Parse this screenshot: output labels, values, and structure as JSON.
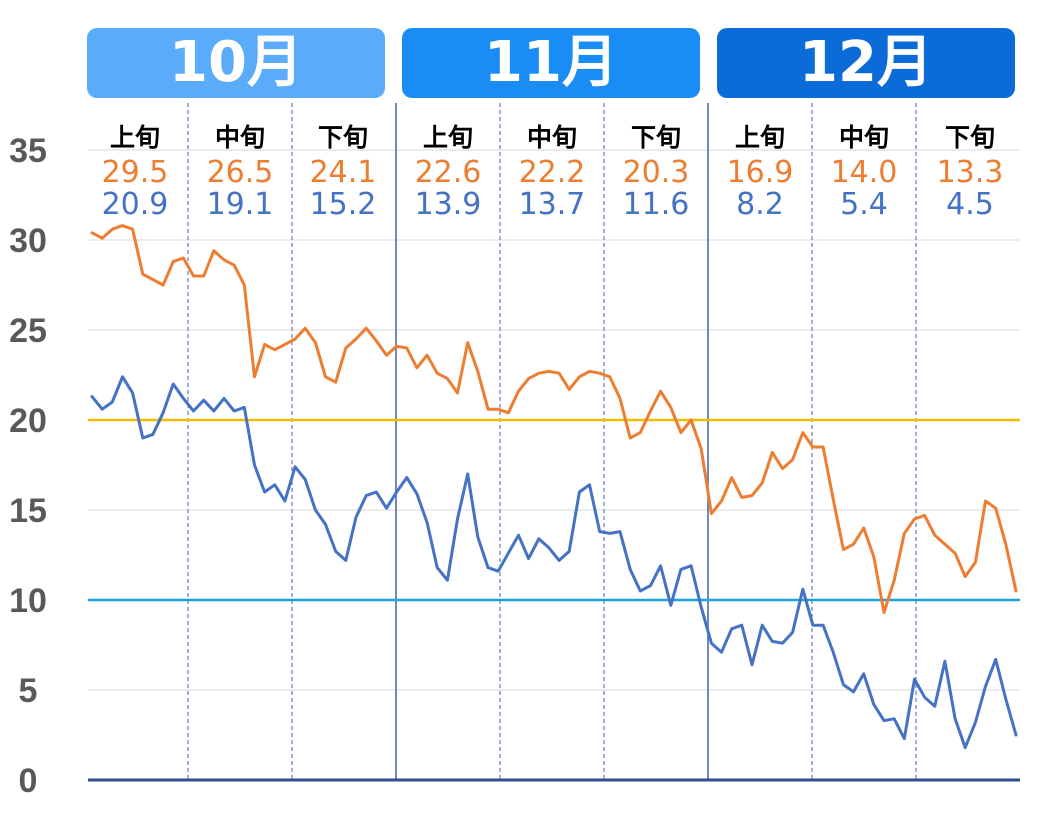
{
  "months": [
    {
      "label": "10月",
      "color": "#5aabfa"
    },
    {
      "label": "11月",
      "color": "#1a8cf5"
    },
    {
      "label": "12月",
      "color": "#0b6bd9"
    }
  ],
  "colors": {
    "high_line": "#ED7D31",
    "low_line": "#4472C4",
    "threshold_20": "#F2BC00",
    "threshold_10": "#1AA3DC",
    "grid": "#D9D9D9",
    "divider": "#3F63B0",
    "axis": "#2F4F8F"
  },
  "chart_data": {
    "type": "line",
    "ylim": [
      0,
      35
    ],
    "yticks": [
      "0",
      "5",
      "10",
      "15",
      "20",
      "25",
      "30",
      "35"
    ],
    "grid": true,
    "thresholds": [
      20,
      10
    ],
    "periods": [
      {
        "label": "上旬",
        "high": "29.5",
        "low": "20.9"
      },
      {
        "label": "中旬",
        "high": "26.5",
        "low": "19.1"
      },
      {
        "label": "下旬",
        "high": "24.1",
        "low": "15.2"
      },
      {
        "label": "上旬",
        "high": "22.6",
        "low": "13.9"
      },
      {
        "label": "中旬",
        "high": "22.2",
        "low": "13.7"
      },
      {
        "label": "下旬",
        "high": "20.3",
        "low": "11.6"
      },
      {
        "label": "上旬",
        "high": "16.9",
        "low": "8.2"
      },
      {
        "label": "中旬",
        "high": "14.0",
        "low": "5.4"
      },
      {
        "label": "下旬",
        "high": "13.3",
        "low": "4.5"
      }
    ],
    "series": [
      {
        "values": [
          30.4,
          30.1,
          30.6,
          30.8,
          30.6,
          28.1,
          27.8,
          27.5,
          28.8,
          29.0,
          28.0,
          28.0,
          29.4,
          28.9,
          28.6,
          27.5,
          22.4,
          24.2,
          23.9,
          24.2,
          24.5,
          25.1,
          24.3,
          22.4,
          22.1,
          24.0,
          24.5,
          25.1,
          24.4,
          23.6,
          24.1,
          24.0,
          22.9,
          23.6,
          22.6,
          22.3,
          21.5,
          24.3,
          22.7,
          20.6,
          20.6,
          20.4,
          21.6,
          22.3,
          22.6,
          22.7,
          22.6,
          21.7,
          22.4,
          22.7,
          22.6,
          22.4,
          21.2,
          19.0,
          19.3,
          20.5,
          21.6,
          20.7,
          19.3,
          20.0,
          18.4,
          14.8,
          15.5,
          16.8,
          15.7,
          15.8,
          16.5,
          18.2,
          17.3,
          17.8,
          19.3,
          18.5,
          18.5,
          15.6,
          12.8,
          13.1,
          14.0,
          12.4,
          9.3,
          11.1,
          13.7,
          14.5,
          14.7,
          13.6,
          13.1,
          12.6,
          11.3,
          12.1,
          15.5,
          15.1,
          13.1,
          10.5
        ]
      },
      {
        "values": [
          21.3,
          20.6,
          21.0,
          22.4,
          21.5,
          19.0,
          19.2,
          20.4,
          22.0,
          21.2,
          20.5,
          21.1,
          20.5,
          21.2,
          20.5,
          20.7,
          17.5,
          16.0,
          16.4,
          15.5,
          17.4,
          16.7,
          15.0,
          14.2,
          12.7,
          12.2,
          14.6,
          15.8,
          16.0,
          15.1,
          16.0,
          16.8,
          15.9,
          14.3,
          11.8,
          11.1,
          14.5,
          17.0,
          13.5,
          11.8,
          11.6,
          12.6,
          13.6,
          12.3,
          13.4,
          12.9,
          12.2,
          12.7,
          16.0,
          16.4,
          13.8,
          13.7,
          13.8,
          11.7,
          10.5,
          10.8,
          11.9,
          9.7,
          11.7,
          11.9,
          9.6,
          7.6,
          7.1,
          8.4,
          8.6,
          6.4,
          8.6,
          7.7,
          7.6,
          8.2,
          10.6,
          8.6,
          8.6,
          7.1,
          5.3,
          4.9,
          5.9,
          4.2,
          3.3,
          3.4,
          2.3,
          5.6,
          4.6,
          4.1,
          6.6,
          3.4,
          1.8,
          3.2,
          5.2,
          6.7,
          4.5,
          2.5
        ]
      }
    ]
  }
}
